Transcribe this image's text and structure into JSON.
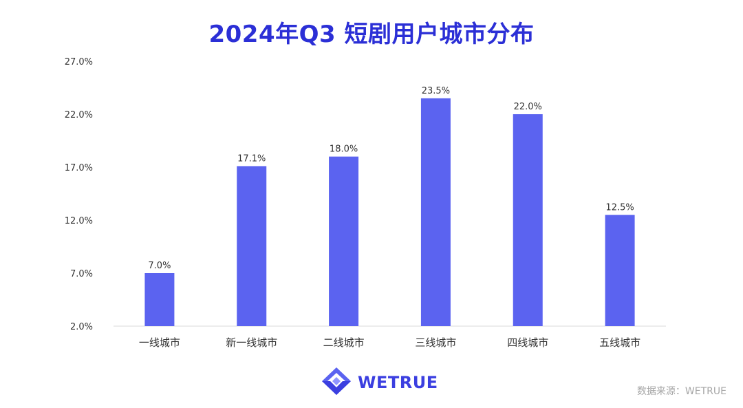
{
  "title": "2024年Q3 短剧用户城市分布",
  "colors": {
    "title": "#2b2fd6",
    "bar": "#5b63f0",
    "axis_text": "#333333",
    "brand": "#3b3fe0",
    "source_text": "#a6a6a6"
  },
  "brand": {
    "name": "WETRUE",
    "logo_icon": "wetrue-diamond-logo-icon"
  },
  "source": "数据来源：WETRUE",
  "chart_data": {
    "type": "bar",
    "categories": [
      "一线城市",
      "新一线城市",
      "二线城市",
      "三线城市",
      "四线城市",
      "五线城市"
    ],
    "values": [
      7.0,
      17.1,
      18.0,
      23.5,
      22.0,
      12.5
    ],
    "value_labels": [
      "7.0%",
      "17.1%",
      "18.0%",
      "23.5%",
      "22.0%",
      "12.5%"
    ],
    "yticks": [
      2.0,
      7.0,
      12.0,
      17.0,
      22.0,
      27.0
    ],
    "ytick_labels": [
      "2.0%",
      "7.0%",
      "12.0%",
      "17.0%",
      "22.0%",
      "27.0%"
    ],
    "ylim": [
      2.0,
      27.0
    ],
    "title": "2024年Q3 短剧用户城市分布",
    "xlabel": "",
    "ylabel": "",
    "grid": false,
    "legend": "none"
  }
}
